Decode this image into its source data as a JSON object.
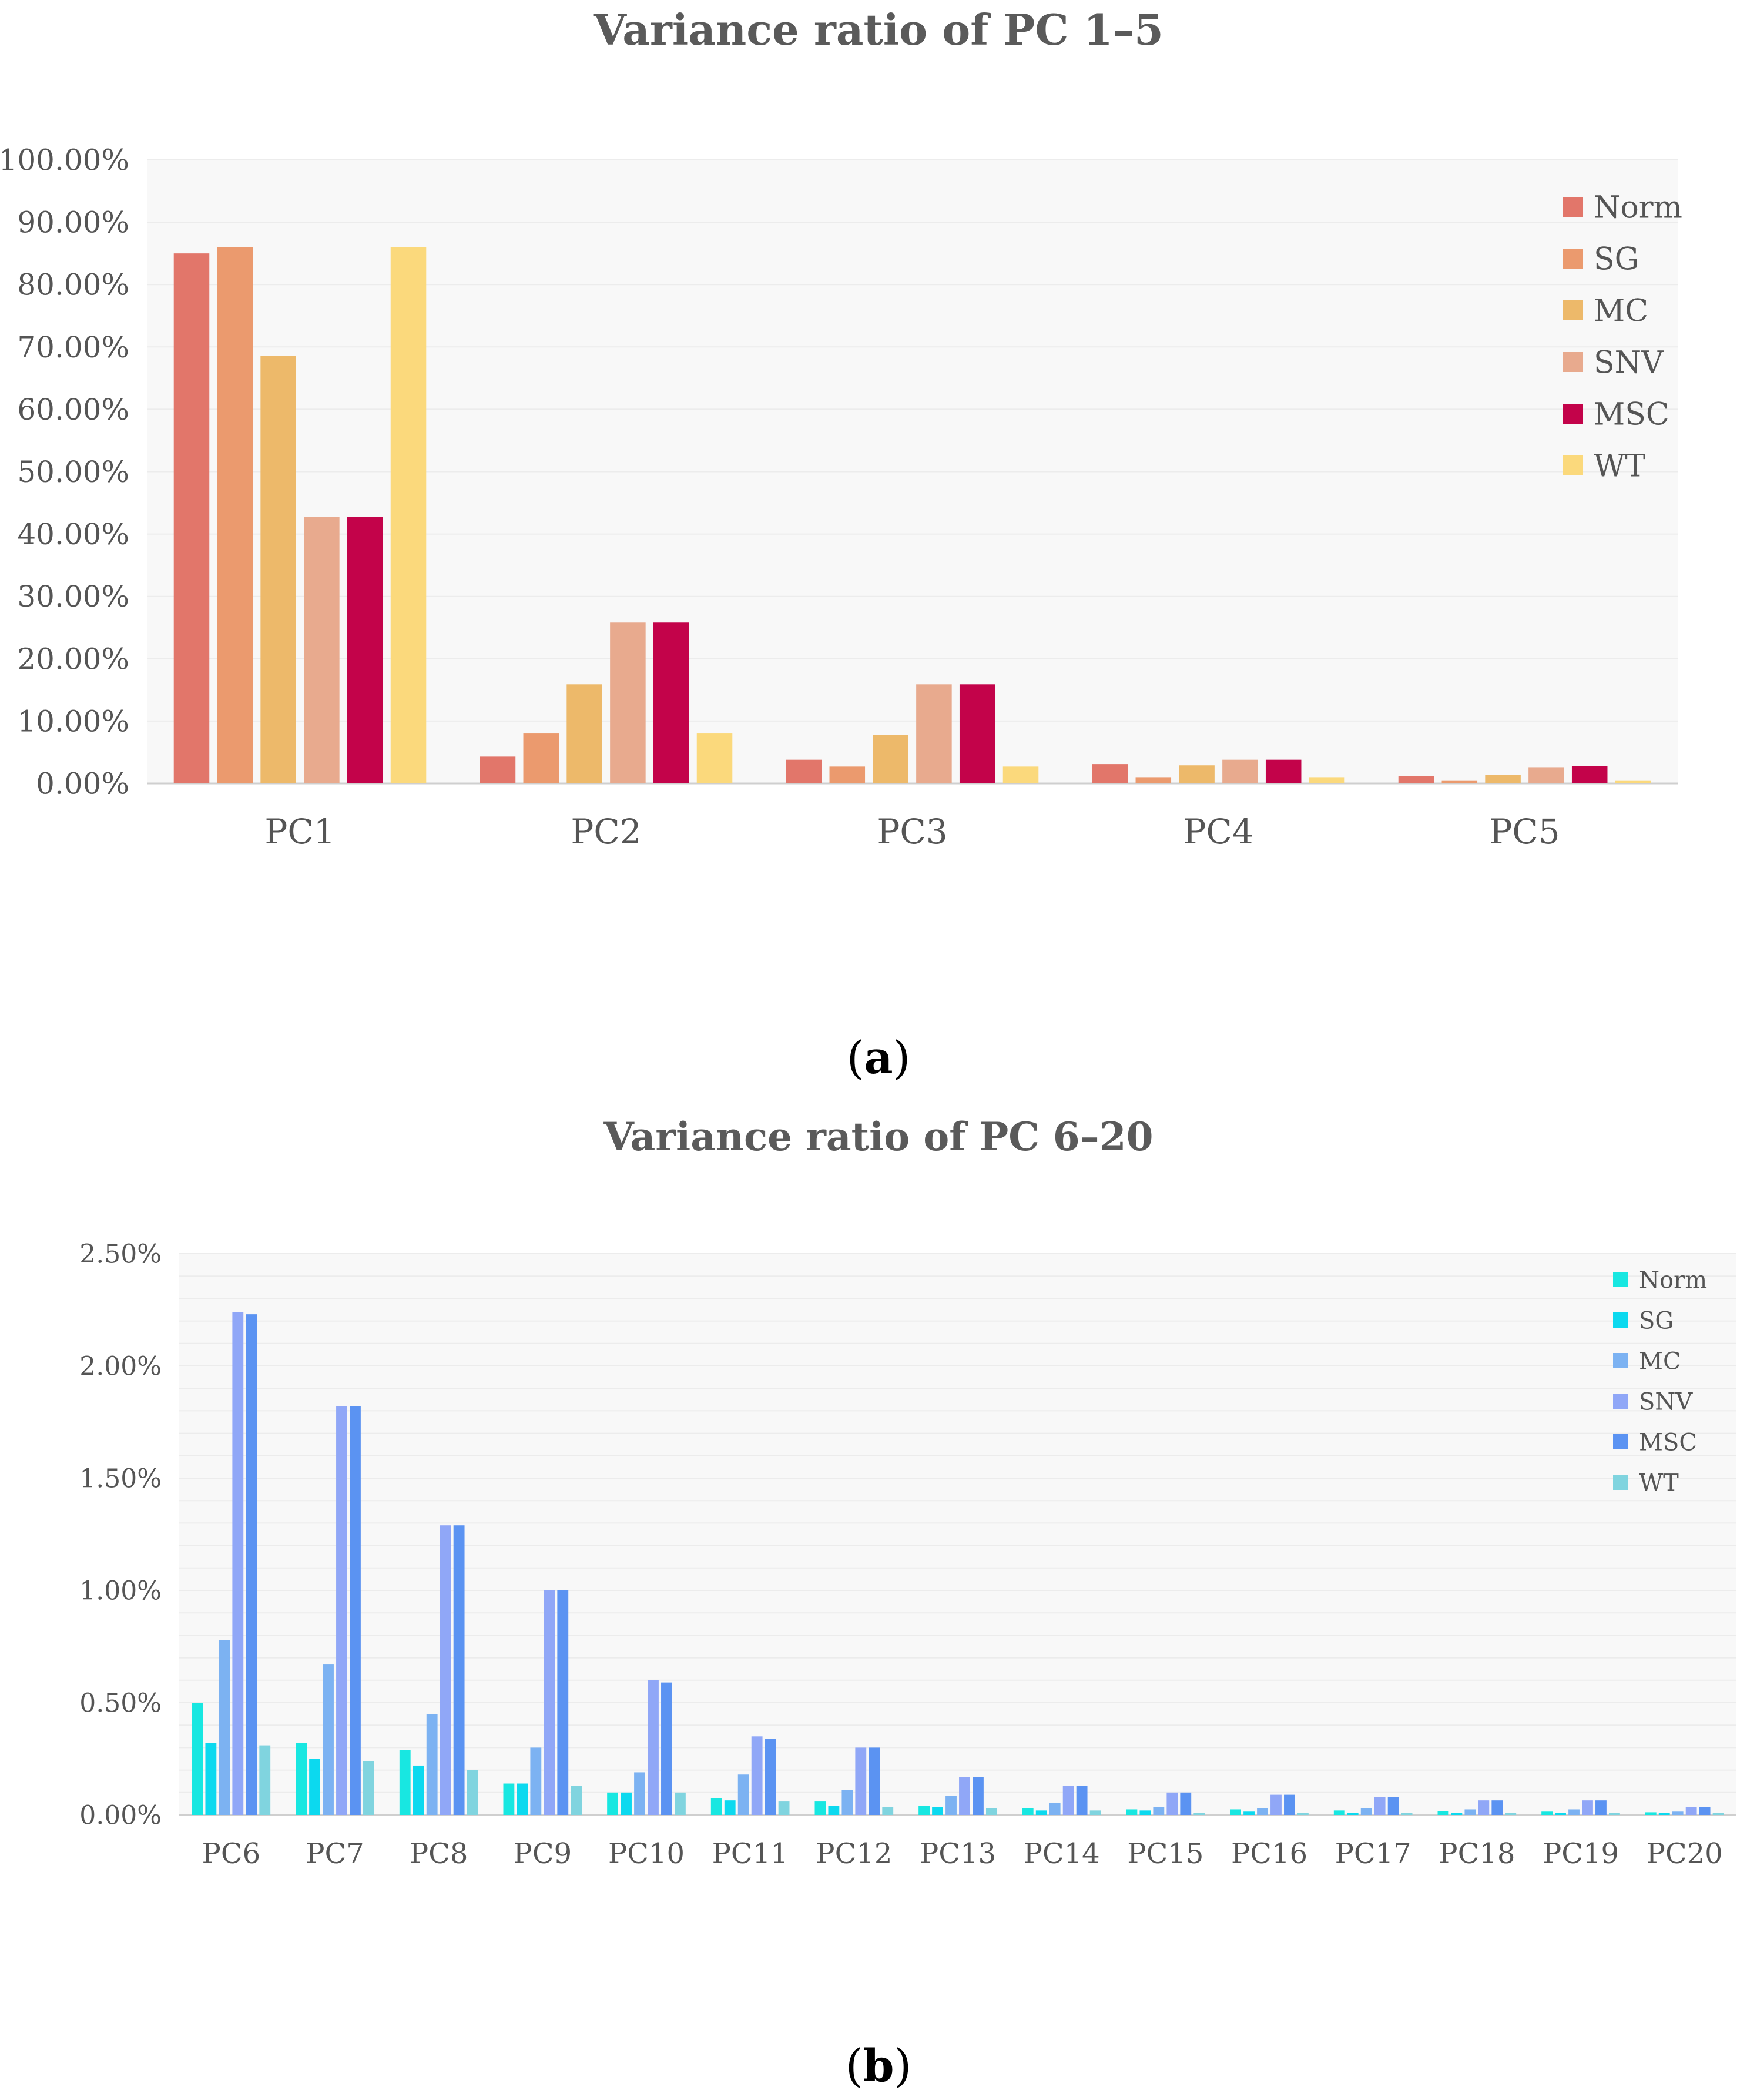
{
  "chart_data": [
    {
      "id": "a",
      "type": "bar",
      "title": "Variance ratio of PC 1–5",
      "caption": "a",
      "categories": [
        "PC1",
        "PC2",
        "PC3",
        "PC4",
        "PC5"
      ],
      "ylim": [
        0,
        100
      ],
      "yticks": [
        "0.00%",
        "10.00%",
        "20.00%",
        "30.00%",
        "40.00%",
        "50.00%",
        "60.00%",
        "70.00%",
        "80.00%",
        "90.00%",
        "100.00%"
      ],
      "legend_position": "top-right",
      "series": [
        {
          "name": "Norm",
          "color": "#e2766a",
          "values": [
            85.0,
            4.3,
            3.8,
            3.1,
            1.2
          ]
        },
        {
          "name": "SG",
          "color": "#eb9a6e",
          "values": [
            86.0,
            8.1,
            2.7,
            1.0,
            0.5
          ]
        },
        {
          "name": "MC",
          "color": "#edb96a",
          "values": [
            68.6,
            15.9,
            7.8,
            2.9,
            1.4
          ]
        },
        {
          "name": "SNV",
          "color": "#e8aa8e",
          "values": [
            42.7,
            25.8,
            15.9,
            3.8,
            2.6
          ]
        },
        {
          "name": "MSC",
          "color": "#c3034a",
          "values": [
            42.7,
            25.8,
            15.9,
            3.8,
            2.8
          ]
        },
        {
          "name": "WT",
          "color": "#fbd97c",
          "values": [
            86.0,
            8.1,
            2.7,
            1.0,
            0.5
          ]
        }
      ]
    },
    {
      "id": "b",
      "type": "bar",
      "title": "Variance ratio of PC 6–20",
      "caption": "b",
      "categories": [
        "PC6",
        "PC7",
        "PC8",
        "PC9",
        "PC10",
        "PC11",
        "PC12",
        "PC13",
        "PC14",
        "PC15",
        "PC16",
        "PC17",
        "PC18",
        "PC19",
        "PC20"
      ],
      "ylim": [
        0,
        2.5
      ],
      "yticks": [
        "0.00%",
        "0.50%",
        "1.00%",
        "1.50%",
        "2.00%",
        "2.50%"
      ],
      "legend_position": "top-right",
      "series": [
        {
          "name": "Norm",
          "color": "#18e7e1",
          "values": [
            0.5,
            0.32,
            0.29,
            0.14,
            0.1,
            0.075,
            0.06,
            0.04,
            0.03,
            0.025,
            0.025,
            0.02,
            0.018,
            0.015,
            0.012
          ]
        },
        {
          "name": "SG",
          "color": "#0cd9ef",
          "values": [
            0.32,
            0.25,
            0.22,
            0.14,
            0.1,
            0.065,
            0.04,
            0.035,
            0.02,
            0.02,
            0.015,
            0.01,
            0.01,
            0.01,
            0.008
          ]
        },
        {
          "name": "MC",
          "color": "#7cb2f2",
          "values": [
            0.78,
            0.67,
            0.45,
            0.3,
            0.19,
            0.18,
            0.11,
            0.085,
            0.055,
            0.035,
            0.03,
            0.03,
            0.025,
            0.025,
            0.015
          ]
        },
        {
          "name": "SNV",
          "color": "#90a7f7",
          "values": [
            2.24,
            1.82,
            1.29,
            1.0,
            0.6,
            0.35,
            0.3,
            0.17,
            0.13,
            0.1,
            0.09,
            0.08,
            0.065,
            0.065,
            0.035
          ]
        },
        {
          "name": "MSC",
          "color": "#5b93f2",
          "values": [
            2.23,
            1.82,
            1.29,
            1.0,
            0.59,
            0.34,
            0.3,
            0.17,
            0.13,
            0.1,
            0.09,
            0.08,
            0.065,
            0.065,
            0.035
          ]
        },
        {
          "name": "WT",
          "color": "#80d4df",
          "values": [
            0.31,
            0.24,
            0.2,
            0.13,
            0.1,
            0.06,
            0.035,
            0.03,
            0.02,
            0.01,
            0.01,
            0.008,
            0.008,
            0.008,
            0.008
          ]
        }
      ]
    }
  ]
}
